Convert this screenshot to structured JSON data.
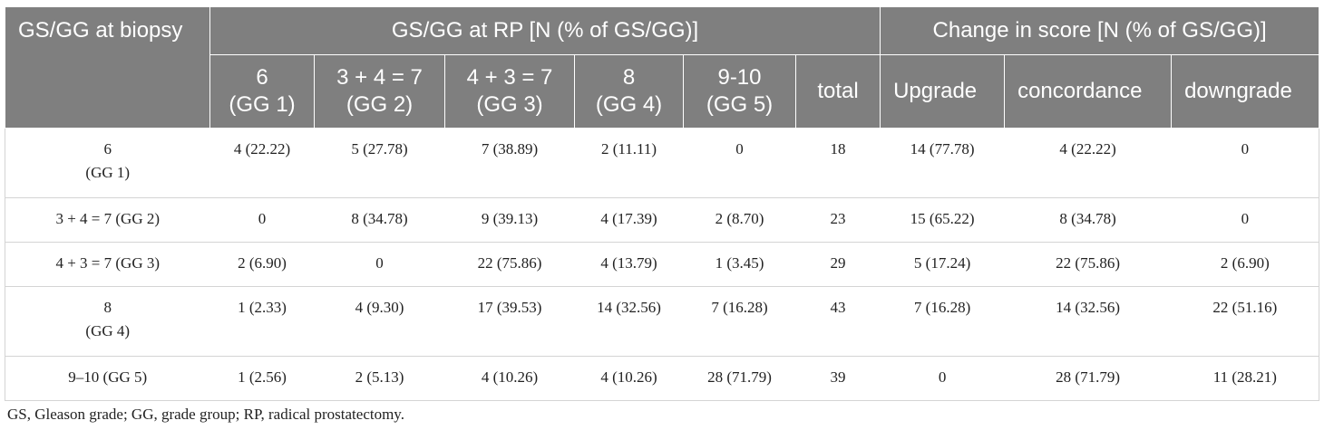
{
  "header": {
    "biopsy_col": "GS/GG at biopsy",
    "rp_group": "GS/GG at RP [N (% of GS/GG)]",
    "change_group": "Change in score [N (% of GS/GG)]",
    "subcols": [
      "6\n(GG 1)",
      "3 + 4 = 7\n(GG 2)",
      "4 + 3 = 7\n(GG 3)",
      "8\n(GG 4)",
      "9-10\n(GG 5)",
      "total",
      "Upgrade",
      "concordance",
      "downgrade"
    ]
  },
  "rows": [
    {
      "label": "6\n(GG 1)",
      "cells": [
        "4 (22.22)",
        "5 (27.78)",
        "7 (38.89)",
        "2 (11.11)",
        "0",
        "18",
        "14 (77.78)",
        "4 (22.22)",
        "0"
      ]
    },
    {
      "label": "3 + 4 = 7 (GG 2)",
      "cells": [
        "0",
        "8 (34.78)",
        "9 (39.13)",
        "4 (17.39)",
        "2 (8.70)",
        "23",
        "15 (65.22)",
        "8 (34.78)",
        "0"
      ]
    },
    {
      "label": "4 + 3 = 7 (GG 3)",
      "cells": [
        "2 (6.90)",
        "0",
        "22 (75.86)",
        "4 (13.79)",
        "1 (3.45)",
        "29",
        "5 (17.24)",
        "22 (75.86)",
        "2 (6.90)"
      ]
    },
    {
      "label": "8\n(GG 4)",
      "cells": [
        "1 (2.33)",
        "4 (9.30)",
        "17 (39.53)",
        "14 (32.56)",
        "7 (16.28)",
        "43",
        "7 (16.28)",
        "14 (32.56)",
        "22 (51.16)"
      ]
    },
    {
      "label": "9–10 (GG 5)",
      "cells": [
        "1 (2.56)",
        "2 (5.13)",
        "4 (10.26)",
        "4 (10.26)",
        "28 (71.79)",
        "39",
        "0",
        "28 (71.79)",
        "11 (28.21)"
      ]
    }
  ],
  "footnote": "GS, Gleason grade; GG, grade group; RP, radical prostatectomy."
}
